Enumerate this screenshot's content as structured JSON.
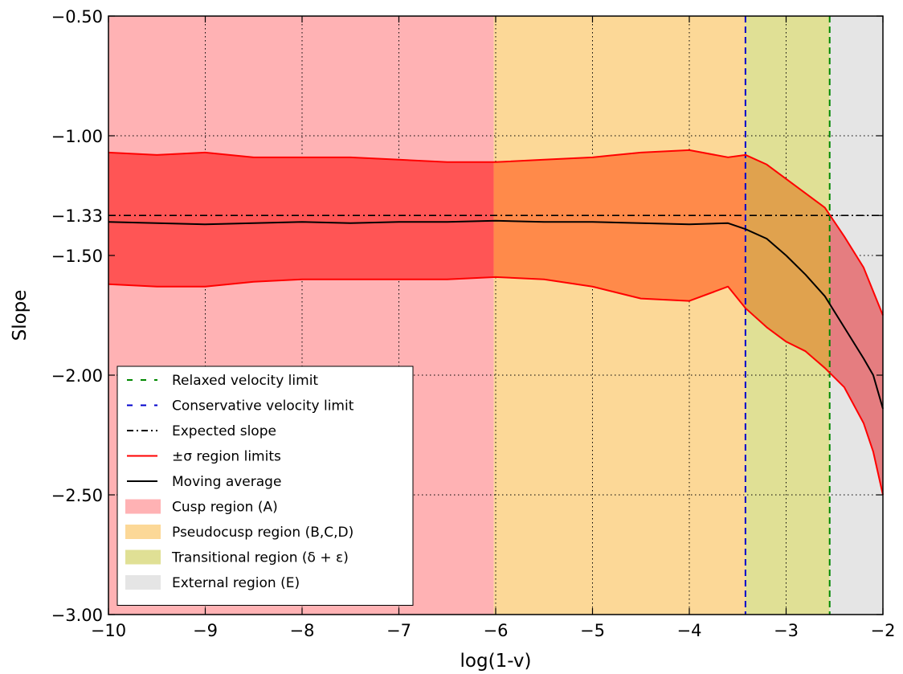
{
  "chart_data": {
    "type": "line",
    "xlabel": "log(1-v)",
    "ylabel": "Slope",
    "xlim": [
      -10,
      -2
    ],
    "ylim": [
      -3.0,
      -0.5
    ],
    "x_ticks": [
      -10,
      -9,
      -8,
      -7,
      -6,
      -5,
      -4,
      -3,
      -2
    ],
    "x_tick_labels": [
      "−10",
      "−9",
      "−8",
      "−7",
      "−6",
      "−5",
      "−4",
      "−3",
      "−2"
    ],
    "y_ticks": [
      -3.0,
      -2.5,
      -2.0,
      -1.5,
      -1.333,
      -1.0,
      -0.5
    ],
    "y_tick_labels": [
      "−3.00",
      "−2.50",
      "−2.00",
      "−1.50",
      "−1.33",
      "−1.00",
      "−0.50"
    ],
    "grid": true,
    "grid_style": "dotted",
    "regions": [
      {
        "name": "Cusp region (A)",
        "x_start": -10,
        "x_end": -6.02,
        "color": "#ffb2b4"
      },
      {
        "name": "Pseudocusp region (B,C,D)",
        "x_start": -6.02,
        "x_end": -3.42,
        "color": "#fcd897"
      },
      {
        "name": "Transitional region (δ + ε)",
        "x_start": -3.42,
        "x_end": -2.55,
        "color": "#e0e095"
      },
      {
        "name": "External region (E)",
        "x_start": -2.55,
        "x_end": -2.0,
        "color": "#e5e5e5"
      }
    ],
    "vlines": [
      {
        "name": "Relaxed velocity limit",
        "x": -2.55,
        "color": "#008800",
        "style": "dashed"
      },
      {
        "name": "Conservative velocity limit",
        "x": -3.42,
        "color": "#0000cc",
        "style": "dashed"
      }
    ],
    "hlines": [
      {
        "name": "Expected slope",
        "y": -1.333,
        "color": "#000000",
        "style": "dashdot"
      }
    ],
    "series": [
      {
        "name": "Moving average",
        "color": "#000000",
        "x": [
          -10,
          -9.5,
          -9,
          -8.5,
          -8,
          -7.5,
          -7,
          -6.5,
          -6,
          -5.5,
          -5,
          -4.5,
          -4,
          -3.6,
          -3.42,
          -3.2,
          -3.0,
          -2.8,
          -2.6,
          -2.4,
          -2.2,
          -2.1,
          -2.0
        ],
        "y": [
          -1.36,
          -1.365,
          -1.37,
          -1.365,
          -1.36,
          -1.365,
          -1.36,
          -1.36,
          -1.355,
          -1.36,
          -1.36,
          -1.365,
          -1.37,
          -1.365,
          -1.39,
          -1.43,
          -1.5,
          -1.58,
          -1.67,
          -1.8,
          -1.93,
          -2.0,
          -2.14
        ]
      },
      {
        "name": "+σ region limit",
        "color": "#ff0000",
        "x": [
          -10,
          -9.5,
          -9,
          -8.5,
          -8,
          -7.5,
          -7,
          -6.5,
          -6,
          -5.5,
          -5,
          -4.5,
          -4,
          -3.6,
          -3.42,
          -3.2,
          -3.0,
          -2.8,
          -2.6,
          -2.4,
          -2.2,
          -2.1,
          -2.0
        ],
        "y": [
          -1.07,
          -1.08,
          -1.07,
          -1.09,
          -1.09,
          -1.09,
          -1.1,
          -1.11,
          -1.11,
          -1.1,
          -1.09,
          -1.07,
          -1.06,
          -1.09,
          -1.08,
          -1.12,
          -1.18,
          -1.24,
          -1.3,
          -1.42,
          -1.55,
          -1.65,
          -1.75
        ]
      },
      {
        "name": "−σ region limit",
        "color": "#ff0000",
        "x": [
          -10,
          -9.5,
          -9,
          -8.5,
          -8,
          -7.5,
          -7,
          -6.5,
          -6,
          -5.5,
          -5,
          -4.5,
          -4,
          -3.6,
          -3.42,
          -3.2,
          -3.0,
          -2.8,
          -2.6,
          -2.4,
          -2.2,
          -2.1,
          -2.0
        ],
        "y": [
          -1.62,
          -1.63,
          -1.63,
          -1.61,
          -1.6,
          -1.6,
          -1.6,
          -1.6,
          -1.59,
          -1.6,
          -1.63,
          -1.68,
          -1.69,
          -1.63,
          -1.72,
          -1.8,
          -1.86,
          -1.9,
          -1.97,
          -2.05,
          -2.2,
          -2.32,
          -2.5
        ]
      }
    ],
    "legend": {
      "placement": "lower-left",
      "entries": [
        {
          "label": "Relaxed velocity limit",
          "kind": "line",
          "color": "#008800",
          "style": "dashed"
        },
        {
          "label": "Conservative velocity limit",
          "kind": "line",
          "color": "#0000cc",
          "style": "dashed"
        },
        {
          "label": "Expected slope",
          "kind": "line",
          "color": "#000000",
          "style": "dashdot"
        },
        {
          "label": "±σ region limits",
          "kind": "line",
          "color": "#ff0000",
          "style": "solid"
        },
        {
          "label": "Moving average",
          "kind": "line",
          "color": "#000000",
          "style": "solid"
        },
        {
          "label": "Cusp region (A)",
          "kind": "patch",
          "color": "#ffb2b4"
        },
        {
          "label": "Pseudocusp region (B,C,D)",
          "kind": "patch",
          "color": "#fcd897"
        },
        {
          "label": "Transitional region (δ + ε)",
          "kind": "patch",
          "color": "#e0e095"
        },
        {
          "label": "External region (E)",
          "kind": "patch",
          "color": "#e5e5e5"
        }
      ]
    }
  }
}
